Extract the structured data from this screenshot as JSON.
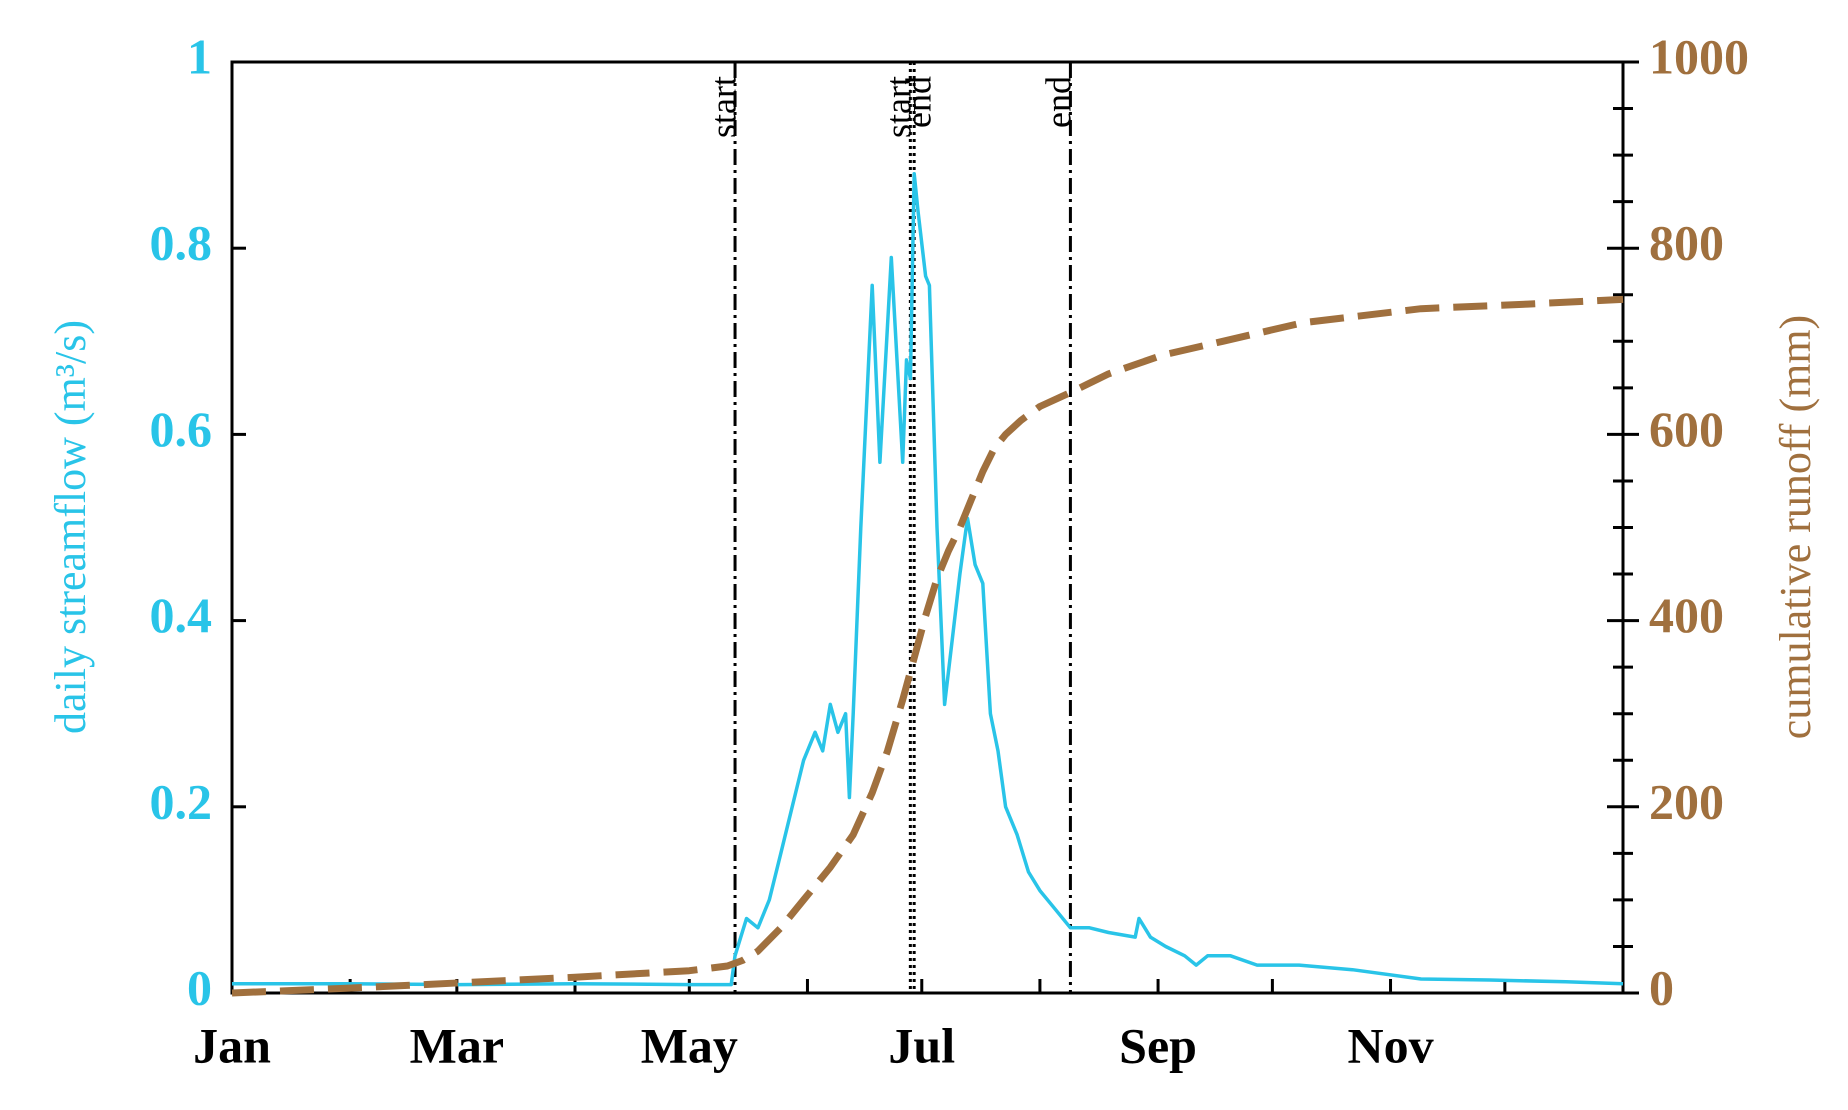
{
  "chart_data": {
    "type": "line",
    "ylabel": "daily streamflow (m³/s)",
    "y2label": "cumulative runoff (mm)",
    "xlim": [
      0,
      365
    ],
    "xticks": [
      {
        "value": 0,
        "label": "Jan"
      },
      {
        "value": 59,
        "label": "Mar"
      },
      {
        "value": 120,
        "label": "May"
      },
      {
        "value": 181,
        "label": "Jul"
      },
      {
        "value": 243,
        "label": "Sep"
      },
      {
        "value": 304,
        "label": "Nov"
      }
    ],
    "xminor_ticks": [
      31,
      90,
      151,
      212,
      273,
      334
    ],
    "ylim": [
      0,
      1
    ],
    "yticks": [
      0,
      0.2,
      0.4,
      0.6,
      0.8,
      1
    ],
    "y2lim": [
      0,
      1000
    ],
    "y2ticks": [
      0,
      200,
      400,
      600,
      800,
      1000
    ],
    "y2minor_ticks": [
      50,
      100,
      150,
      250,
      300,
      350,
      450,
      500,
      550,
      650,
      700,
      750,
      850,
      900,
      950
    ],
    "ycolor": "#29c4e8",
    "y2color": "#a0703e",
    "series": [
      {
        "color": "#29c4e8",
        "axis": "y",
        "style": "solid",
        "x": [
          0,
          30,
          60,
          90,
          120,
          131,
          132,
          135,
          138,
          141,
          144,
          147,
          150,
          153,
          155,
          157,
          159,
          161,
          162,
          163,
          165,
          168,
          170,
          173,
          176,
          177,
          178,
          179,
          180,
          182,
          183,
          185,
          187,
          189,
          191,
          193,
          195,
          197,
          199,
          201,
          203,
          206,
          209,
          212,
          216,
          220,
          225,
          230,
          237,
          238,
          241,
          245,
          250,
          253,
          256,
          262,
          269,
          280,
          294,
          312,
          330,
          350,
          365
        ],
        "values": [
          0.01,
          0.01,
          0.009,
          0.01,
          0.009,
          0.009,
          0.04,
          0.08,
          0.07,
          0.1,
          0.15,
          0.2,
          0.25,
          0.28,
          0.26,
          0.31,
          0.28,
          0.3,
          0.21,
          0.3,
          0.5,
          0.76,
          0.57,
          0.79,
          0.57,
          0.68,
          0.66,
          0.88,
          0.84,
          0.77,
          0.76,
          0.5,
          0.31,
          0.38,
          0.45,
          0.51,
          0.46,
          0.44,
          0.3,
          0.26,
          0.2,
          0.17,
          0.13,
          0.11,
          0.09,
          0.07,
          0.07,
          0.065,
          0.06,
          0.08,
          0.06,
          0.05,
          0.04,
          0.03,
          0.04,
          0.04,
          0.03,
          0.03,
          0.025,
          0.015,
          0.014,
          0.012,
          0.01
        ]
      },
      {
        "color": "#a0703e",
        "axis": "y2",
        "style": "dashed",
        "x": [
          0,
          30,
          60,
          90,
          120,
          130,
          134,
          138,
          144,
          150,
          157,
          163,
          168,
          172,
          176,
          179,
          182,
          185,
          188,
          191,
          194,
          197,
          200,
          203,
          207,
          212,
          220,
          230,
          244,
          260,
          281,
          312,
          340,
          365
        ],
        "values": [
          0,
          5,
          11,
          17,
          24,
          29,
          35,
          45,
          70,
          100,
          135,
          170,
          215,
          260,
          315,
          360,
          405,
          445,
          475,
          500,
          530,
          560,
          585,
          600,
          615,
          630,
          645,
          665,
          685,
          700,
          720,
          735,
          740,
          745
        ]
      }
    ],
    "vlines": [
      {
        "x": 132,
        "label": "start",
        "style": "dashdot",
        "label_side": "left"
      },
      {
        "x": 178,
        "label": "start",
        "style": "dotted",
        "label_side": "left"
      },
      {
        "x": 179,
        "label": "end",
        "style": "dotted",
        "label_side": "right"
      },
      {
        "x": 220,
        "label": "end",
        "style": "dashdot",
        "label_side": "left"
      }
    ]
  }
}
